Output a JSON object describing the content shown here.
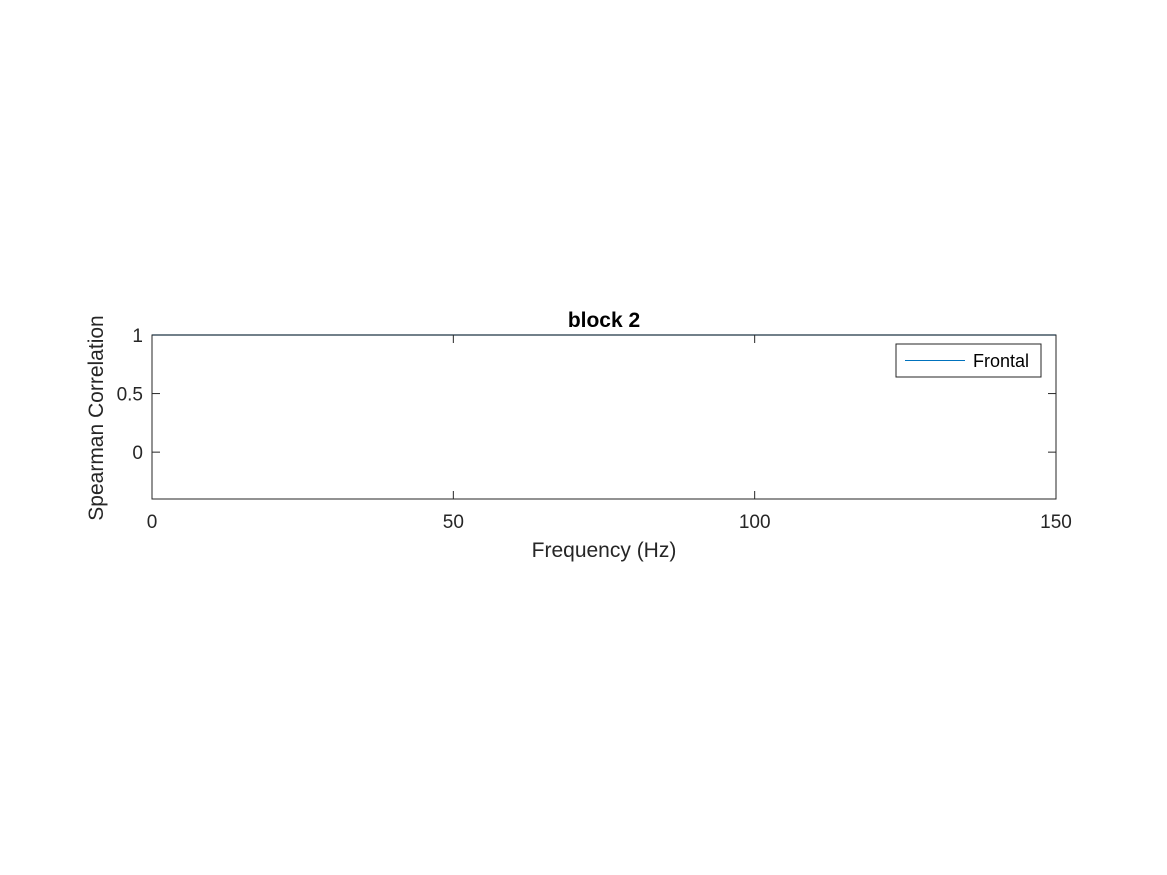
{
  "chart_data": {
    "type": "line",
    "title": "block 2",
    "xlabel": "Frequency (Hz)",
    "ylabel": "Spearman Correlation",
    "xlim": [
      0,
      150
    ],
    "ylim": [
      -0.4,
      1
    ],
    "xticks": [
      0,
      50,
      100,
      150
    ],
    "yticks": [
      0,
      0.5,
      1
    ],
    "xtick_labels": [
      "0",
      "50",
      "100",
      "150"
    ],
    "ytick_labels": [
      "0",
      "0.5",
      "1"
    ],
    "grid": false,
    "legend_position": "top-right",
    "series": [
      {
        "name": "Frontal",
        "color": "#0072bd",
        "x": [
          0,
          25,
          50,
          75,
          100,
          125,
          150
        ],
        "y": [
          1,
          1,
          1,
          1,
          1,
          1,
          1
        ]
      }
    ]
  }
}
